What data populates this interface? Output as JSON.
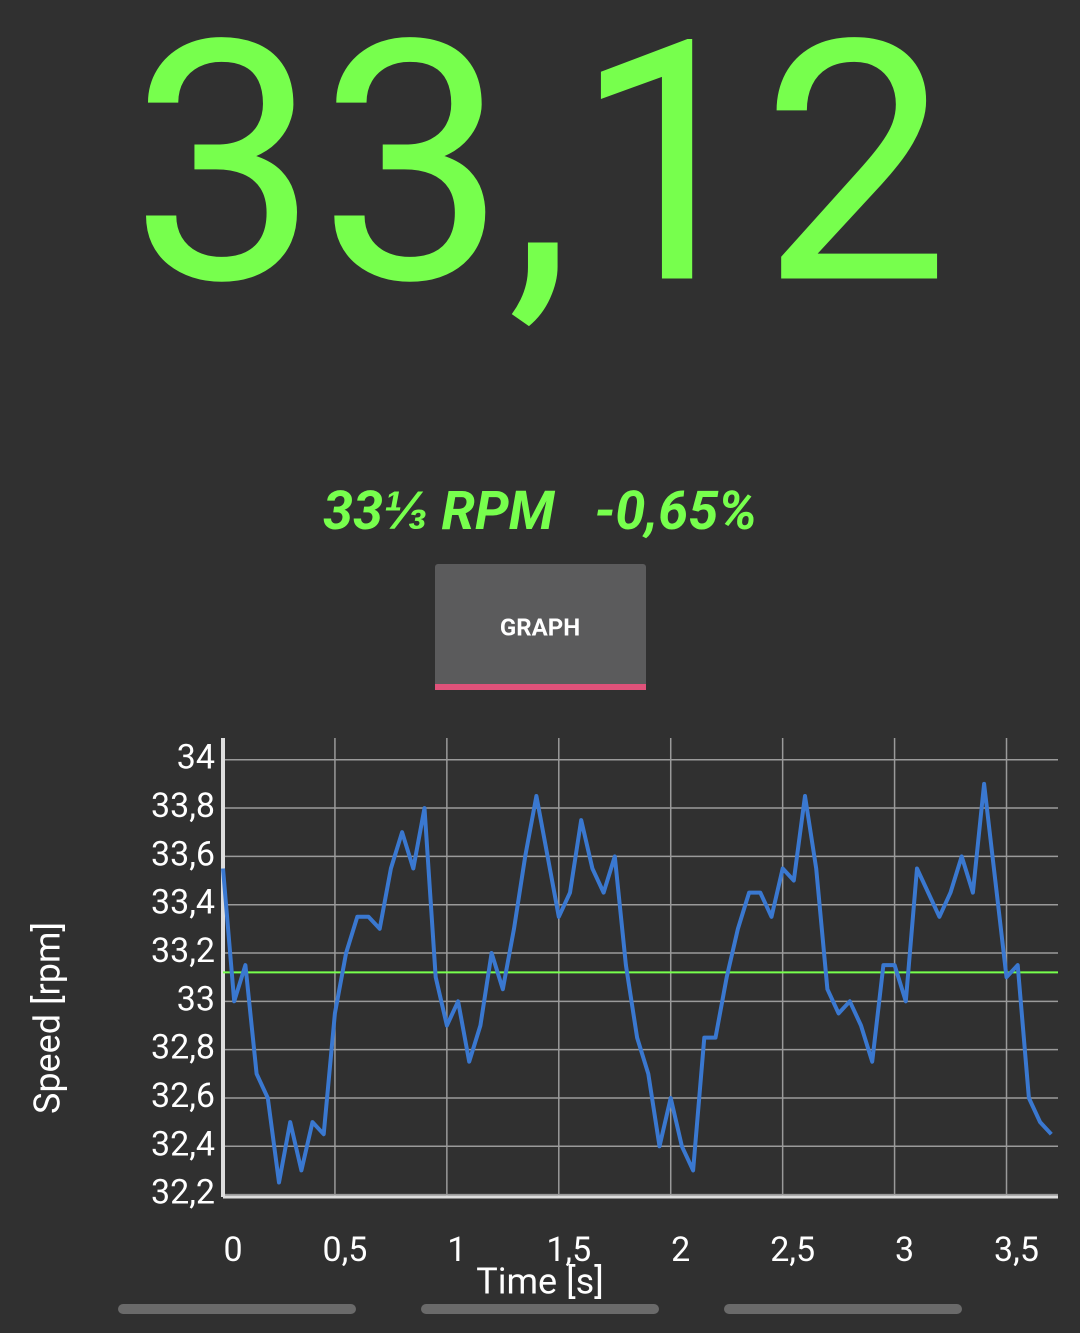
{
  "display": {
    "reading": "33,12",
    "target": "33⅓ RPM",
    "deviation": "-0,65%"
  },
  "button": "GRAPH",
  "chart_data": {
    "type": "line",
    "x_label": "Time [s]",
    "y_label": "Speed [rpm]",
    "xlim": [
      0,
      3.73
    ],
    "ylim": [
      32.19,
      34.09
    ],
    "xticks": [
      0,
      {
        "value": 0.5,
        "label": "0,5"
      },
      1,
      {
        "value": 1.5,
        "label": "1,5"
      },
      2,
      {
        "value": 2.5,
        "label": "2,5"
      },
      3,
      {
        "value": 3.5,
        "label": "3,5"
      }
    ],
    "yticks": [
      {
        "value": 32.2,
        "label": "32,2"
      },
      {
        "value": 32.4,
        "label": "32,4"
      },
      {
        "value": 32.6,
        "label": "32,6"
      },
      {
        "value": 32.8,
        "label": "32,8"
      },
      33,
      {
        "value": 33.2,
        "label": "33,2"
      },
      {
        "value": 33.4,
        "label": "33,4"
      },
      {
        "value": 33.6,
        "label": "33,6"
      },
      {
        "value": 33.8,
        "label": "33,8"
      },
      34
    ],
    "grid": true,
    "mean": 33.12,
    "mean_color": "#77ff4d",
    "series": [
      {
        "color": "#3a78d0",
        "x": [
          0,
          0.05,
          0.1,
          0.15,
          0.2,
          0.25,
          0.3,
          0.35,
          0.4,
          0.45,
          0.5,
          0.55,
          0.6,
          0.65,
          0.7,
          0.75,
          0.8,
          0.85,
          0.9,
          0.95,
          1.0,
          1.05,
          1.1,
          1.15,
          1.2,
          1.25,
          1.3,
          1.35,
          1.4,
          1.45,
          1.5,
          1.55,
          1.6,
          1.65,
          1.7,
          1.75,
          1.8,
          1.85,
          1.9,
          1.95,
          2.0,
          2.05,
          2.1,
          2.15,
          2.2,
          2.25,
          2.3,
          2.35,
          2.4,
          2.45,
          2.5,
          2.55,
          2.6,
          2.65,
          2.7,
          2.75,
          2.8,
          2.85,
          2.9,
          2.95,
          3.0,
          3.05,
          3.1,
          3.15,
          3.2,
          3.25,
          3.3,
          3.35,
          3.4,
          3.45,
          3.5,
          3.55,
          3.6,
          3.65,
          3.7
        ],
        "values": [
          33.55,
          33.0,
          33.15,
          32.7,
          32.6,
          32.25,
          32.5,
          32.3,
          32.5,
          32.45,
          32.95,
          33.2,
          33.35,
          33.35,
          33.3,
          33.55,
          33.7,
          33.55,
          33.8,
          33.1,
          32.9,
          33.0,
          32.75,
          32.9,
          33.2,
          33.05,
          33.3,
          33.6,
          33.85,
          33.6,
          33.35,
          33.45,
          33.75,
          33.55,
          33.45,
          33.6,
          33.15,
          32.85,
          32.7,
          32.4,
          32.6,
          32.4,
          32.3,
          32.85,
          32.85,
          33.1,
          33.3,
          33.45,
          33.45,
          33.35,
          33.55,
          33.5,
          33.85,
          33.55,
          33.05,
          32.95,
          33.0,
          32.9,
          32.75,
          33.15,
          33.15,
          33.0,
          33.55,
          33.45,
          33.35,
          33.45,
          33.6,
          33.45,
          33.9,
          33.5,
          33.1,
          33.15,
          32.6,
          32.5,
          32.45
        ]
      }
    ]
  }
}
